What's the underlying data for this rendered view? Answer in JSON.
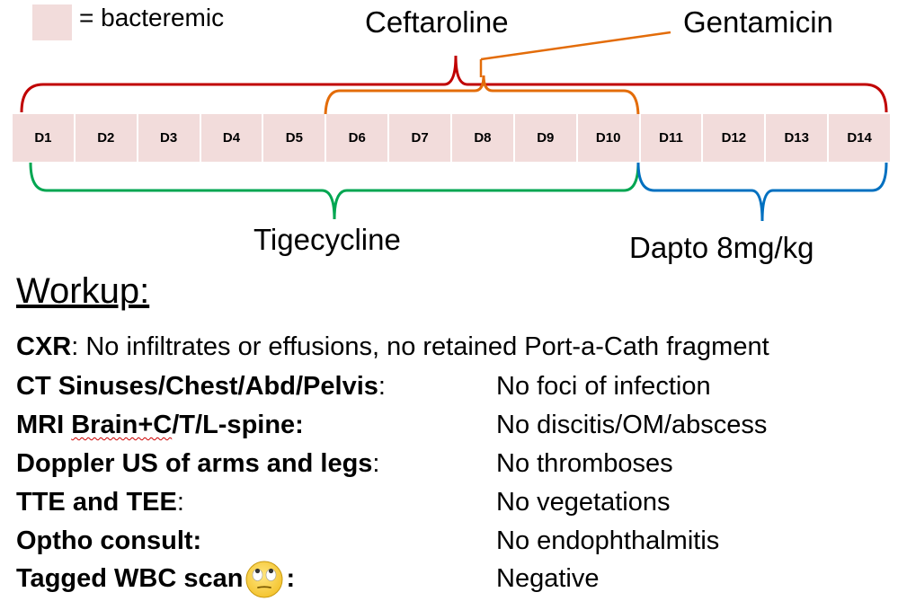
{
  "legend": {
    "label": "= bacteremic",
    "swatch_color": "#f2dcdb"
  },
  "drugs": {
    "ceftaroline": "Ceftaroline",
    "gentamicin": "Gentamicin",
    "tigecycline": "Tigecycline",
    "dapto": "Dapto 8mg/kg"
  },
  "colors": {
    "ceftaroline": "#c00000",
    "gentamicin": "#e36c09",
    "tigecycline": "#00a651",
    "dapto": "#0070c0",
    "bacteremic": "#f2dcdb"
  },
  "days": [
    "D1",
    "D2",
    "D3",
    "D4",
    "D5",
    "D6",
    "D7",
    "D8",
    "D9",
    "D10",
    "D11",
    "D12",
    "D13",
    "D14"
  ],
  "workup": {
    "title": "Workup:",
    "cxr": {
      "label": "CXR",
      "result": ": No infiltrates or effusions, no retained Port-a-Cath fragment"
    },
    "rows": [
      {
        "label": "CT Sinuses/Chest/Abd/Pelvis",
        "suffix": ":",
        "result": "No foci of infection"
      },
      {
        "label_pre": "MRI ",
        "label_squiggle": "Brain+C",
        "label_post": "/T/L-spine:",
        "result": "No discitis/OM/abscess"
      },
      {
        "label": "Doppler US of arms and legs",
        "suffix": ":",
        "result": "No thromboses"
      },
      {
        "label": "TTE and TEE",
        "suffix": ":",
        "result": "No vegetations"
      },
      {
        "label": "Optho consult:",
        "suffix": "",
        "result": "No endophthalmitis"
      },
      {
        "label": "Tagged WBC scan",
        "suffix": ":",
        "icon": "eye-roll-emoji-icon",
        "result": "Negative"
      }
    ]
  }
}
